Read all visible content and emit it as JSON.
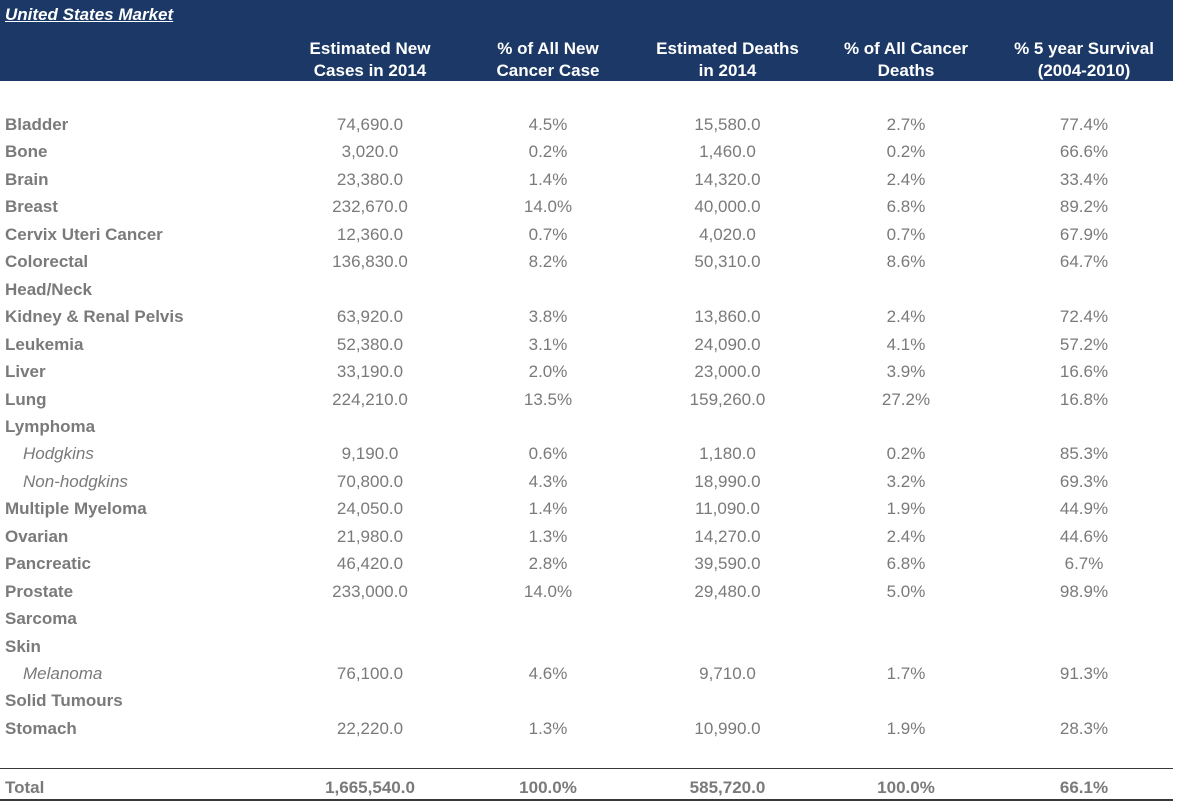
{
  "header": {
    "title": "United States Market",
    "columns": [
      {
        "line1": "Estimated New",
        "line2": "Cases in 2014"
      },
      {
        "line1": "% of All New",
        "line2": "Cancer Case"
      },
      {
        "line1": "Estimated Deaths",
        "line2": "in 2014"
      },
      {
        "line1": "% of All Cancer",
        "line2": "Deaths"
      },
      {
        "line1": "% 5 year Survival",
        "line2": "(2004-2010)"
      }
    ]
  },
  "rows": [
    {
      "label": "Bladder",
      "sub": false,
      "values": [
        "74,690.0",
        "4.5%",
        "15,580.0",
        "2.7%",
        "77.4%"
      ]
    },
    {
      "label": "Bone",
      "sub": false,
      "values": [
        "3,020.0",
        "0.2%",
        "1,460.0",
        "0.2%",
        "66.6%"
      ]
    },
    {
      "label": "Brain",
      "sub": false,
      "values": [
        "23,380.0",
        "1.4%",
        "14,320.0",
        "2.4%",
        "33.4%"
      ]
    },
    {
      "label": "Breast",
      "sub": false,
      "values": [
        "232,670.0",
        "14.0%",
        "40,000.0",
        "6.8%",
        "89.2%"
      ]
    },
    {
      "label": "Cervix Uteri Cancer",
      "sub": false,
      "values": [
        "12,360.0",
        "0.7%",
        "4,020.0",
        "0.7%",
        "67.9%"
      ]
    },
    {
      "label": "Colorectal",
      "sub": false,
      "values": [
        "136,830.0",
        "8.2%",
        "50,310.0",
        "8.6%",
        "64.7%"
      ]
    },
    {
      "label": "Head/Neck",
      "sub": false,
      "values": [
        "",
        "",
        "",
        "",
        ""
      ]
    },
    {
      "label": "Kidney & Renal Pelvis",
      "sub": false,
      "values": [
        "63,920.0",
        "3.8%",
        "13,860.0",
        "2.4%",
        "72.4%"
      ]
    },
    {
      "label": "Leukemia",
      "sub": false,
      "values": [
        "52,380.0",
        "3.1%",
        "24,090.0",
        "4.1%",
        "57.2%"
      ]
    },
    {
      "label": "Liver",
      "sub": false,
      "values": [
        "33,190.0",
        "2.0%",
        "23,000.0",
        "3.9%",
        "16.6%"
      ]
    },
    {
      "label": "Lung",
      "sub": false,
      "values": [
        "224,210.0",
        "13.5%",
        "159,260.0",
        "27.2%",
        "16.8%"
      ]
    },
    {
      "label": "Lymphoma",
      "sub": false,
      "values": [
        "",
        "",
        "",
        "",
        ""
      ]
    },
    {
      "label": "Hodgkins",
      "sub": true,
      "values": [
        "9,190.0",
        "0.6%",
        "1,180.0",
        "0.2%",
        "85.3%"
      ]
    },
    {
      "label": "Non-hodgkins",
      "sub": true,
      "values": [
        "70,800.0",
        "4.3%",
        "18,990.0",
        "3.2%",
        "69.3%"
      ]
    },
    {
      "label": "Multiple Myeloma",
      "sub": false,
      "values": [
        "24,050.0",
        "1.4%",
        "11,090.0",
        "1.9%",
        "44.9%"
      ]
    },
    {
      "label": "Ovarian",
      "sub": false,
      "values": [
        "21,980.0",
        "1.3%",
        "14,270.0",
        "2.4%",
        "44.6%"
      ]
    },
    {
      "label": "Pancreatic",
      "sub": false,
      "values": [
        "46,420.0",
        "2.8%",
        "39,590.0",
        "6.8%",
        "6.7%"
      ]
    },
    {
      "label": "Prostate",
      "sub": false,
      "values": [
        "233,000.0",
        "14.0%",
        "29,480.0",
        "5.0%",
        "98.9%"
      ]
    },
    {
      "label": "Sarcoma",
      "sub": false,
      "values": [
        "",
        "",
        "",
        "",
        ""
      ]
    },
    {
      "label": "Skin",
      "sub": false,
      "values": [
        "",
        "",
        "",
        "",
        ""
      ]
    },
    {
      "label": "Melanoma",
      "sub": true,
      "values": [
        "76,100.0",
        "4.6%",
        "9,710.0",
        "1.7%",
        "91.3%"
      ]
    },
    {
      "label": "Solid Tumours",
      "sub": false,
      "values": [
        "",
        "",
        "",
        "",
        ""
      ]
    },
    {
      "label": "Stomach",
      "sub": false,
      "values": [
        "22,220.0",
        "1.3%",
        "10,990.0",
        "1.9%",
        "28.3%"
      ]
    }
  ],
  "total": {
    "label": "Total",
    "values": [
      "1,665,540.0",
      "100.0%",
      "585,720.0",
      "100.0%",
      "66.1%"
    ]
  }
}
